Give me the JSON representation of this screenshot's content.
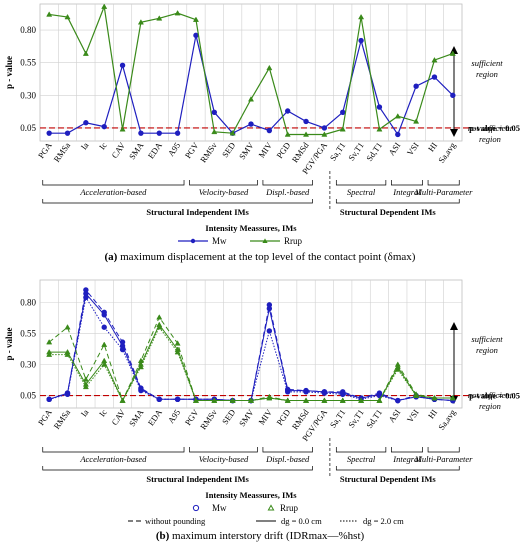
{
  "chart_data": [
    {
      "type": "line",
      "ylabel": "p - value",
      "yticks": [
        "0.05",
        "0.30",
        "0.55",
        "0.80"
      ],
      "xlabel": "Intensity Meassures, IMs",
      "caption_prefix": "(a)",
      "caption_text": "maximum displacement at the top level of the contact point (δmax)",
      "categories": [
        "PGA",
        "RMSa",
        "Ia",
        "Ic",
        "CAV",
        "SMA",
        "EDA",
        "A95",
        "PGV",
        "RMSv",
        "SED",
        "SMV",
        "MIV",
        "PGD",
        "RMSd",
        "PGV/PGA",
        "Sa,T1",
        "Sv,T1",
        "Sd,T1",
        "ASI",
        "VSI",
        "HI",
        "Sa,avg"
      ],
      "series": [
        {
          "name": "Mw",
          "color": "#1f1fbf",
          "marker": "circle",
          "values": [
            0.01,
            0.01,
            0.09,
            0.06,
            0.53,
            0.01,
            0.01,
            0.01,
            0.76,
            0.17,
            0.01,
            0.08,
            0.03,
            0.18,
            0.1,
            0.05,
            0.17,
            0.72,
            0.21,
            0.0,
            0.37,
            0.44,
            0.3
          ]
        },
        {
          "name": "Rrup",
          "color": "#3a8a1a",
          "marker": "triangle",
          "values": [
            0.92,
            0.9,
            0.62,
            0.98,
            0.04,
            0.86,
            0.89,
            0.93,
            0.88,
            0.02,
            0.01,
            0.27,
            0.51,
            0.0,
            0.0,
            0.0,
            0.04,
            0.9,
            0.04,
            0.14,
            0.1,
            0.57,
            0.62
          ]
        }
      ],
      "threshold": {
        "value": 0.05,
        "label": "p-value = 0.05",
        "color": "#c00000"
      },
      "regions": {
        "upper": [
          "sufficient",
          "region"
        ],
        "lower": [
          "not sufficient",
          "region"
        ]
      },
      "groups": [
        "Acceleration-based",
        "Velocity-based",
        "Displ.-based",
        "Spectral",
        "Integral",
        "Multi-Parameter"
      ],
      "supergroups": [
        "Structural Independent IMs",
        "Structural Dependent IMs"
      ],
      "legend": [
        "Mw",
        "Rrup"
      ]
    },
    {
      "type": "line",
      "ylabel": "p - value",
      "yticks": [
        "0.05",
        "0.30",
        "0.55",
        "0.80"
      ],
      "xlabel": "Intensity Meassures, IMs",
      "caption_prefix": "(b)",
      "caption_text": "maximum interstory drift (IDRmax—%hst)",
      "categories": [
        "PGA",
        "RMSa",
        "Ia",
        "Ic",
        "CAV",
        "SMA",
        "EDA",
        "A95",
        "PGV",
        "RMSv",
        "SED",
        "SMV",
        "MIV",
        "PGD",
        "RMSd",
        "PGV/PGA",
        "Sa,T1",
        "Sv,T1",
        "Sd,T1",
        "ASI",
        "VSI",
        "HI",
        "Sa,avg"
      ],
      "series": [
        {
          "name": "Mw",
          "color": "#1f1fbf",
          "marker": "circle",
          "variant": "without pounding",
          "values": [
            0.02,
            0.07,
            0.9,
            0.72,
            0.48,
            0.11,
            0.02,
            0.02,
            0.02,
            0.02,
            0.01,
            0.01,
            0.78,
            0.1,
            0.09,
            0.08,
            0.08,
            0.03,
            0.07,
            0.01,
            0.05,
            0.02,
            0.01
          ]
        },
        {
          "name": "Mw",
          "color": "#1f1fbf",
          "marker": "circle",
          "variant": "dg = 0.0 cm",
          "values": [
            0.02,
            0.07,
            0.87,
            0.7,
            0.45,
            0.1,
            0.02,
            0.02,
            0.02,
            0.02,
            0.01,
            0.01,
            0.75,
            0.09,
            0.09,
            0.08,
            0.07,
            0.03,
            0.06,
            0.01,
            0.04,
            0.02,
            0.01
          ]
        },
        {
          "name": "Mw",
          "color": "#1f1fbf",
          "marker": "circle",
          "variant": "dg = 2.0 cm",
          "values": [
            0.02,
            0.06,
            0.84,
            0.6,
            0.42,
            0.09,
            0.02,
            0.02,
            0.02,
            0.02,
            0.01,
            0.01,
            0.57,
            0.08,
            0.08,
            0.07,
            0.06,
            0.02,
            0.05,
            0.01,
            0.04,
            0.02,
            0.01
          ]
        },
        {
          "name": "Rrup",
          "color": "#3a8a1a",
          "marker": "triangle",
          "variant": "without pounding",
          "values": [
            0.48,
            0.6,
            0.18,
            0.46,
            0.01,
            0.33,
            0.68,
            0.47,
            0.01,
            0.01,
            0.01,
            0.01,
            0.04,
            0.01,
            0.01,
            0.01,
            0.01,
            0.01,
            0.01,
            0.3,
            0.06,
            0.03,
            0.03
          ]
        },
        {
          "name": "Rrup",
          "color": "#3a8a1a",
          "marker": "triangle",
          "variant": "dg = 0.0 cm",
          "values": [
            0.4,
            0.4,
            0.14,
            0.33,
            0.01,
            0.3,
            0.62,
            0.42,
            0.01,
            0.01,
            0.01,
            0.01,
            0.03,
            0.01,
            0.01,
            0.01,
            0.01,
            0.01,
            0.01,
            0.28,
            0.05,
            0.03,
            0.03
          ]
        },
        {
          "name": "Rrup",
          "color": "#3a8a1a",
          "marker": "triangle",
          "variant": "dg = 2.0 cm",
          "values": [
            0.38,
            0.38,
            0.12,
            0.3,
            0.01,
            0.28,
            0.6,
            0.4,
            0.01,
            0.01,
            0.01,
            0.01,
            0.03,
            0.01,
            0.01,
            0.01,
            0.01,
            0.01,
            0.01,
            0.26,
            0.05,
            0.03,
            0.03
          ]
        }
      ],
      "threshold": {
        "value": 0.05,
        "label": "p-value = 0.05",
        "color": "#c00000"
      },
      "regions": {
        "upper": [
          "sufficient",
          "region"
        ],
        "lower": [
          "not sufficient",
          "region"
        ]
      },
      "groups": [
        "Acceleration-based",
        "Velocity-based",
        "Displ.-based",
        "Spectral",
        "Integral",
        "Multi-Parameter"
      ],
      "supergroups": [
        "Structural Independent IMs",
        "Structural Dependent IMs"
      ],
      "legend": [
        "Mw",
        "Rrup"
      ],
      "linestyle_legend": [
        "without pounding",
        "dg = 0.0 cm",
        "dg = 2.0 cm"
      ]
    }
  ]
}
